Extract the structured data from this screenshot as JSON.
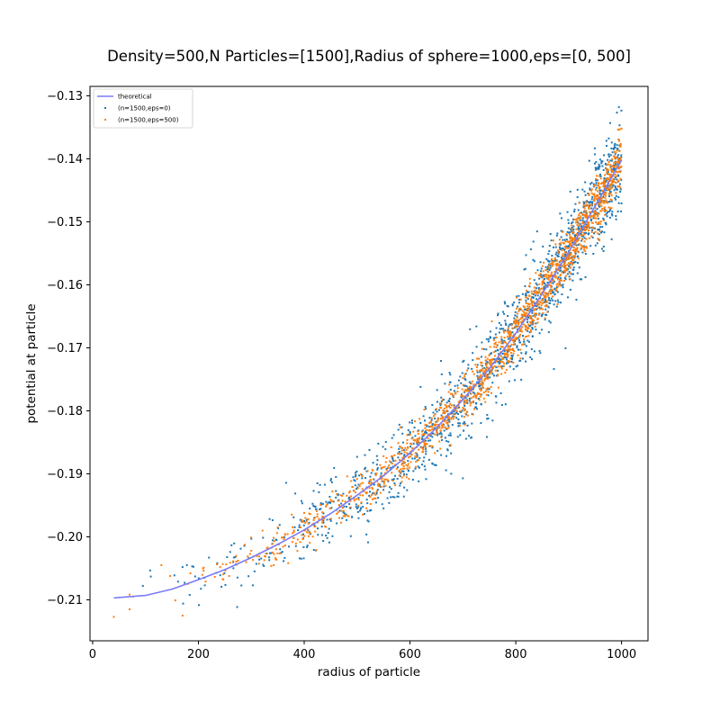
{
  "chart_data": {
    "type": "scatter",
    "title": "Density=500,N Particles=[1500],Radius of sphere=1000,eps=[0, 500]",
    "xlabel": "radius of particle",
    "ylabel": "potential at particle",
    "xlim": [
      -5,
      1050
    ],
    "ylim": [
      -0.2165,
      -0.1285
    ],
    "xticks": [
      0,
      200,
      400,
      600,
      800,
      1000
    ],
    "xtick_labels": [
      "0",
      "200",
      "400",
      "600",
      "800",
      "1000"
    ],
    "yticks": [
      -0.21,
      -0.2,
      -0.19,
      -0.18,
      -0.17,
      -0.16,
      -0.15,
      -0.14,
      -0.13
    ],
    "ytick_labels": [
      "−0.21",
      "−0.20",
      "−0.19",
      "−0.18",
      "−0.17",
      "−0.16",
      "−0.15",
      "−0.14",
      "−0.13"
    ],
    "grid": false,
    "legend_position": "top-left",
    "theoretical": {
      "name": "theoretical",
      "color": "#7b7bf5",
      "x": [
        40,
        100,
        150,
        200,
        250,
        300,
        350,
        400,
        450,
        500,
        550,
        600,
        650,
        700,
        750,
        800,
        850,
        900,
        950,
        1000
      ],
      "y": [
        -0.2097,
        -0.2093,
        -0.2083,
        -0.2068,
        -0.2052,
        -0.2033,
        -0.2012,
        -0.1989,
        -0.1963,
        -0.1934,
        -0.1903,
        -0.1867,
        -0.1827,
        -0.1782,
        -0.1733,
        -0.1677,
        -0.1614,
        -0.1548,
        -0.1475,
        -0.1402
      ]
    },
    "series": [
      {
        "name": "(n=1500,eps=0)",
        "color": "#1f77b4",
        "count": 1500,
        "x": [
          95,
          110,
          170,
          220,
          260,
          300,
          340,
          380,
          420,
          460,
          500,
          540,
          580,
          620,
          660,
          700,
          740,
          780,
          820,
          860,
          900,
          940,
          980,
          995
        ],
        "y": [
          -0.2078,
          -0.2063,
          -0.2048,
          -0.2033,
          -0.2024,
          -0.2003,
          -0.2011,
          -0.1969,
          -0.1952,
          -0.1905,
          -0.1873,
          -0.1852,
          -0.1822,
          -0.1762,
          -0.1742,
          -0.1722,
          -0.1702,
          -0.1657,
          -0.1617,
          -0.1575,
          -0.1502,
          -0.1447,
          -0.1394,
          -0.1318
        ]
      },
      {
        "name": "(n=1500,eps=500)",
        "color": "#ff7f0e",
        "count": 1500,
        "x": [
          40,
          70,
          130,
          170,
          210,
          260,
          300,
          350,
          400,
          450,
          500,
          550,
          600,
          650,
          700,
          750,
          800,
          850,
          900,
          950,
          990,
          1000
        ],
        "y": [
          -0.2127,
          -0.2115,
          -0.2045,
          -0.2125,
          -0.2049,
          -0.2041,
          -0.2022,
          -0.1985,
          -0.1962,
          -0.1941,
          -0.1908,
          -0.1872,
          -0.1838,
          -0.1797,
          -0.1748,
          -0.1712,
          -0.1662,
          -0.1612,
          -0.1532,
          -0.1472,
          -0.1398,
          -0.1352
        ]
      }
    ]
  }
}
